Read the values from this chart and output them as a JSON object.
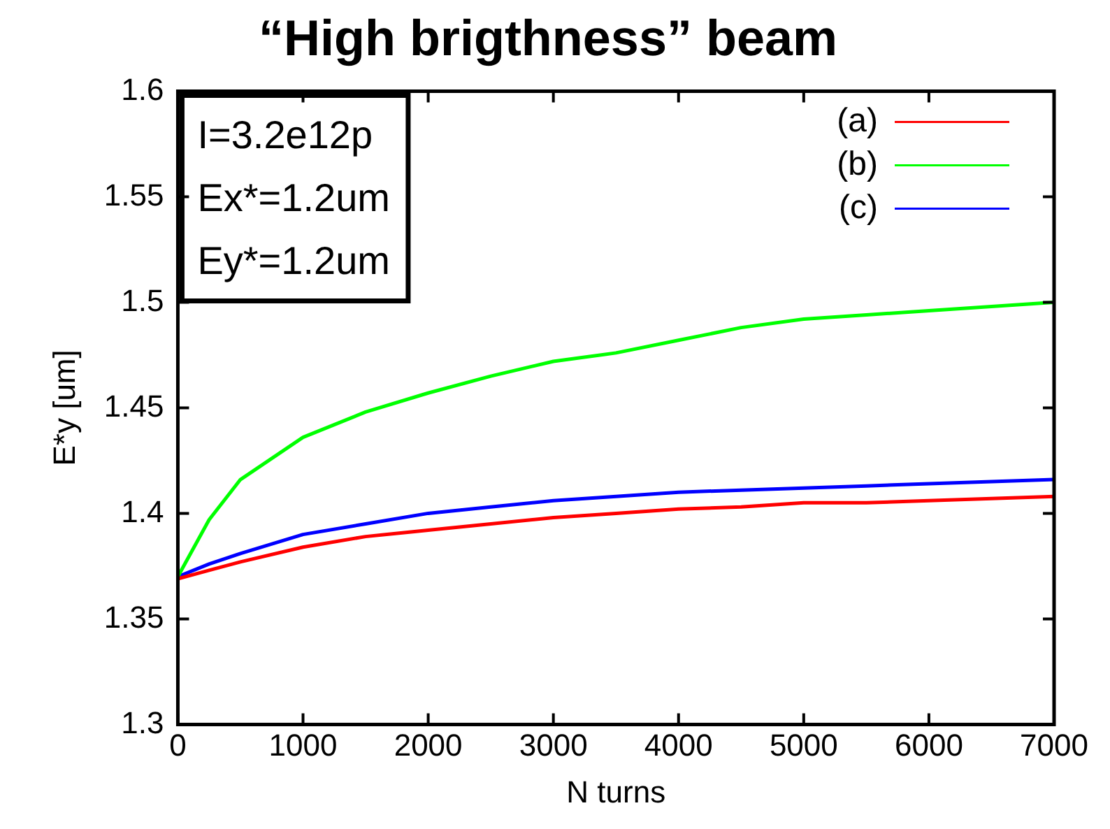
{
  "chart_data": {
    "type": "line",
    "title": "“High brigthness” beam",
    "xlabel": "N turns",
    "ylabel": "E*y [um]",
    "annotations": [
      "I=3.2e12p",
      "Ex*=1.2um",
      "Ey*=1.2um"
    ],
    "x": [
      0,
      250,
      500,
      1000,
      1500,
      2000,
      2500,
      3000,
      3500,
      4000,
      4500,
      5000,
      5500,
      6000,
      6500,
      7000
    ],
    "series": [
      {
        "name": "(a)",
        "color": "#ff0000",
        "values": [
          1.369,
          1.373,
          1.377,
          1.384,
          1.389,
          1.392,
          1.395,
          1.398,
          1.4,
          1.402,
          1.403,
          1.405,
          1.405,
          1.406,
          1.407,
          1.408
        ]
      },
      {
        "name": "(b)",
        "color": "#00ff00",
        "values": [
          1.37,
          1.397,
          1.416,
          1.436,
          1.448,
          1.457,
          1.465,
          1.472,
          1.476,
          1.482,
          1.488,
          1.492,
          1.494,
          1.496,
          1.498,
          1.5
        ]
      },
      {
        "name": "(c)",
        "color": "#0000ff",
        "values": [
          1.37,
          1.376,
          1.381,
          1.39,
          1.395,
          1.4,
          1.403,
          1.406,
          1.408,
          1.41,
          1.411,
          1.412,
          1.413,
          1.414,
          1.415,
          1.416
        ]
      }
    ],
    "xlim": [
      0,
      7000
    ],
    "xticks": [
      0,
      1000,
      2000,
      3000,
      4000,
      5000,
      6000,
      7000
    ],
    "ylim": [
      1.3,
      1.6
    ],
    "yticks": [
      {
        "value": 1.3,
        "label": "1.3"
      },
      {
        "value": 1.35,
        "label": "1.35"
      },
      {
        "value": 1.4,
        "label": "1.4"
      },
      {
        "value": 1.45,
        "label": "1.45"
      },
      {
        "value": 1.5,
        "label": "1.5"
      },
      {
        "value": 1.55,
        "label": "1.55"
      },
      {
        "value": 1.6,
        "label": "1.6"
      }
    ],
    "grid": false,
    "legend": "top right",
    "marker": "none",
    "line_style": "solid"
  }
}
